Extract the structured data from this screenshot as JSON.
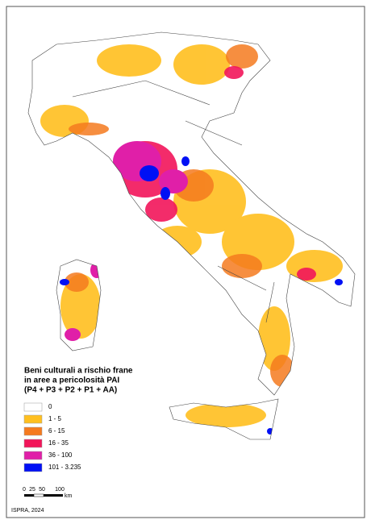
{
  "legend": {
    "title_lines": [
      "Beni culturali a rischio frane",
      "in aree a pericolosità PAI",
      "(P4 + P3 + P2 + P1 + AA)"
    ],
    "classes": [
      {
        "label": "0",
        "color": "#ffffff"
      },
      {
        "label": "1 - 5",
        "color": "#ffbf1f"
      },
      {
        "label": "6 - 15",
        "color": "#f57a1e"
      },
      {
        "label": "16 - 35",
        "color": "#f2155a"
      },
      {
        "label": "36 - 100",
        "color": "#e01fa8"
      },
      {
        "label": "101 - 3.235",
        "color": "#0010f5"
      }
    ]
  },
  "scale_bar": {
    "labels": [
      "0",
      "25",
      "50",
      "100"
    ],
    "unit": "km"
  },
  "credit": "ISPRA, 2024"
}
